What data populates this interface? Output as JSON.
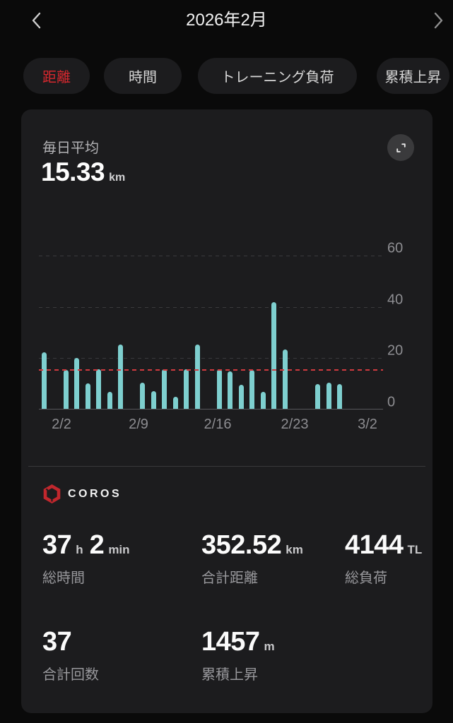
{
  "header": {
    "title": "2026年2月",
    "icons": {
      "prev": "chevron-left",
      "next": "chevron-right"
    }
  },
  "tabs": {
    "items": [
      {
        "label": "距離",
        "active": true
      },
      {
        "label": "時間",
        "active": false
      },
      {
        "label": "トレーニング負荷",
        "active": false
      },
      {
        "label": "累積上昇",
        "active": false
      }
    ]
  },
  "card": {
    "avg_label": "毎日平均",
    "avg_value": "15.33",
    "avg_unit": "km",
    "expand_icon": "expand-corners"
  },
  "chart_data": {
    "type": "bar",
    "title": "毎日平均 15.33 km (2026年2月 日別距離)",
    "x": [
      "2/1",
      "2/2",
      "2/3",
      "2/4",
      "2/5",
      "2/6",
      "2/7",
      "2/8",
      "2/9",
      "2/10",
      "2/11",
      "2/12",
      "2/13",
      "2/14",
      "2/15",
      "2/16",
      "2/17",
      "2/18",
      "2/19",
      "2/20",
      "2/21",
      "2/22",
      "2/23",
      "2/24",
      "2/25",
      "2/26",
      "2/27",
      "2/28",
      "3/1",
      "3/2"
    ],
    "values": [
      22.2,
      0,
      15.5,
      20.0,
      10.2,
      15.6,
      6.8,
      25.4,
      0,
      10.4,
      7.2,
      15.6,
      4.9,
      15.6,
      25.2,
      0,
      15.6,
      15.0,
      9.6,
      15.3,
      6.8,
      41.9,
      23.4,
      0,
      0,
      10.0,
      10.4,
      10.0,
      0,
      0
    ],
    "ylabel": "km",
    "ylim": [
      0,
      60
    ],
    "yticks": [
      0,
      20,
      40,
      60
    ],
    "xtick_labels": [
      "2/2",
      "2/9",
      "2/16",
      "2/23",
      "3/2"
    ],
    "average_line": 15.33,
    "grid": "dashed horizontal",
    "bar_color": "#7ecfcf",
    "avg_line_color": "#cf3a3f"
  },
  "summary": {
    "brand": "COROS",
    "brand_icon": "coros-hexagon",
    "stats": [
      {
        "segments": [
          {
            "value": "37",
            "unit": "h"
          },
          {
            "value": "2",
            "unit": "min"
          }
        ],
        "label": "総時間"
      },
      {
        "segments": [
          {
            "value": "352.52",
            "unit": "km"
          }
        ],
        "label": "合計距離"
      },
      {
        "segments": [
          {
            "value": "4144",
            "unit": "TL"
          }
        ],
        "label": "総負荷"
      },
      {
        "segments": [
          {
            "value": "37",
            "unit": ""
          }
        ],
        "label": "合計回数"
      },
      {
        "segments": [
          {
            "value": "1457",
            "unit": "m"
          }
        ],
        "label": "累積上昇"
      }
    ]
  },
  "colors": {
    "page_bg": "#0a0a0a",
    "card_bg": "#1c1c1e",
    "accent_red": "#d7282e",
    "bar_teal": "#7ecfcf",
    "avg_line_red": "#cf3a3f",
    "axis_text": "#8d8d91",
    "brand_red": "#c1272d"
  }
}
